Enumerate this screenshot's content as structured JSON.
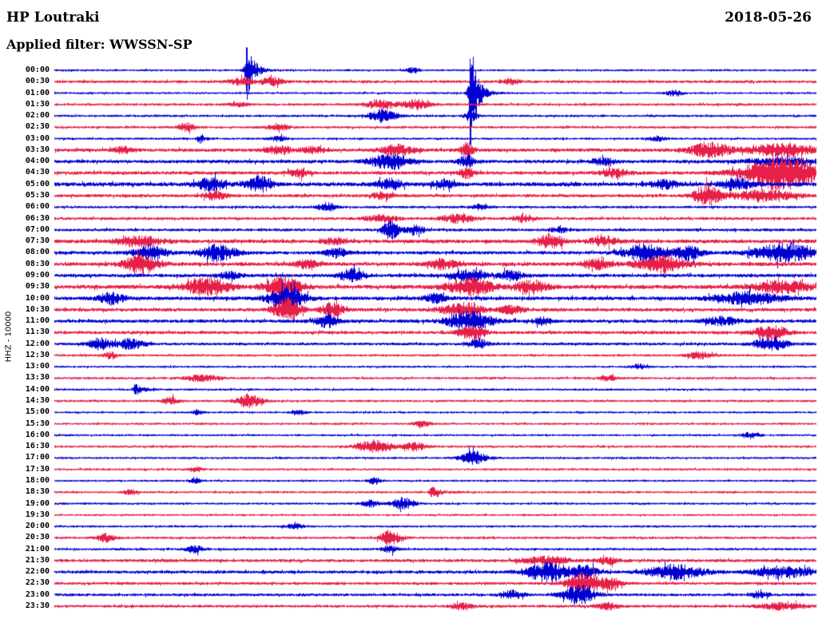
{
  "header": {
    "station": "HP Loutraki",
    "date": "2018-05-26",
    "filter": "Applied filter: WWSSN-SP"
  },
  "axis": {
    "label": "HHZ - 10000"
  },
  "chart_data": {
    "type": "line",
    "subtype": "helicorder-seismogram",
    "station": "HP Loutraki",
    "channel": "HHZ",
    "gain": 10000,
    "date": "2018-05-26",
    "filter": "WWSSN-SP",
    "row_interval_minutes": 30,
    "trace_colors": {
      "even": "#0000d2",
      "odd": "#e62048"
    },
    "rows": [
      {
        "time": "00:00",
        "noise": 1.3,
        "events": [
          [
            0.252,
            0.005,
            40,
            "s"
          ],
          [
            0.47,
            0.006,
            3
          ]
        ]
      },
      {
        "time": "00:30",
        "noise": 1.8,
        "events": [
          [
            0.245,
            0.012,
            4
          ],
          [
            0.285,
            0.01,
            5
          ],
          [
            0.6,
            0.008,
            3
          ]
        ]
      },
      {
        "time": "01:00",
        "noise": 1.3,
        "events": [
          [
            0.546,
            0.005,
            72,
            "s"
          ],
          [
            0.814,
            0.008,
            4
          ]
        ]
      },
      {
        "time": "01:30",
        "noise": 1.6,
        "events": [
          [
            0.43,
            0.015,
            5
          ],
          [
            0.475,
            0.012,
            6
          ],
          [
            0.24,
            0.008,
            3
          ]
        ]
      },
      {
        "time": "02:00",
        "noise": 1.5,
        "events": [
          [
            0.431,
            0.012,
            8
          ],
          [
            0.546,
            0.006,
            6
          ]
        ]
      },
      {
        "time": "02:30",
        "noise": 1.6,
        "events": [
          [
            0.173,
            0.008,
            5
          ],
          [
            0.294,
            0.01,
            3.5
          ]
        ]
      },
      {
        "time": "03:00",
        "noise": 1.4,
        "events": [
          [
            0.189,
            0.004,
            7,
            "s"
          ],
          [
            0.294,
            0.008,
            3
          ],
          [
            0.79,
            0.008,
            3
          ]
        ]
      },
      {
        "time": "03:30",
        "noise": 2.2,
        "events": [
          [
            0.089,
            0.008,
            4
          ],
          [
            0.295,
            0.012,
            5
          ],
          [
            0.34,
            0.01,
            4
          ],
          [
            0.45,
            0.015,
            6
          ],
          [
            0.541,
            0.006,
            9
          ],
          [
            0.86,
            0.018,
            9
          ],
          [
            0.955,
            0.03,
            8
          ]
        ]
      },
      {
        "time": "04:00",
        "noise": 2.2,
        "events": [
          [
            0.44,
            0.018,
            9
          ],
          [
            0.541,
            0.007,
            8
          ],
          [
            0.72,
            0.01,
            4
          ],
          [
            0.955,
            0.03,
            5
          ]
        ]
      },
      {
        "time": "04:30",
        "noise": 2.2,
        "events": [
          [
            0.32,
            0.01,
            5
          ],
          [
            0.541,
            0.007,
            6
          ],
          [
            0.735,
            0.012,
            5
          ],
          [
            0.955,
            0.035,
            20
          ]
        ]
      },
      {
        "time": "05:00",
        "noise": 2.6,
        "events": [
          [
            0.205,
            0.012,
            8
          ],
          [
            0.268,
            0.012,
            9
          ],
          [
            0.44,
            0.012,
            6
          ],
          [
            0.51,
            0.01,
            5
          ],
          [
            0.8,
            0.012,
            5
          ],
          [
            0.895,
            0.014,
            7
          ]
        ]
      },
      {
        "time": "05:30",
        "noise": 2.0,
        "events": [
          [
            0.21,
            0.01,
            5
          ],
          [
            0.43,
            0.01,
            4
          ],
          [
            0.856,
            0.012,
            13
          ],
          [
            0.93,
            0.03,
            6
          ]
        ]
      },
      {
        "time": "06:00",
        "noise": 1.6,
        "events": [
          [
            0.357,
            0.008,
            5
          ],
          [
            0.557,
            0.008,
            3
          ]
        ]
      },
      {
        "time": "06:30",
        "noise": 1.8,
        "events": [
          [
            0.43,
            0.015,
            4
          ],
          [
            0.53,
            0.015,
            5
          ],
          [
            0.615,
            0.01,
            4
          ]
        ]
      },
      {
        "time": "07:00",
        "noise": 1.8,
        "events": [
          [
            0.441,
            0.008,
            11
          ],
          [
            0.473,
            0.008,
            6
          ],
          [
            0.662,
            0.008,
            3
          ]
        ]
      },
      {
        "time": "07:30",
        "noise": 2.4,
        "events": [
          [
            0.11,
            0.02,
            6
          ],
          [
            0.368,
            0.01,
            4
          ],
          [
            0.651,
            0.012,
            8
          ],
          [
            0.72,
            0.012,
            5
          ]
        ]
      },
      {
        "time": "08:00",
        "noise": 2.2,
        "events": [
          [
            0.125,
            0.014,
            9
          ],
          [
            0.215,
            0.016,
            10
          ],
          [
            0.37,
            0.01,
            5
          ],
          [
            0.775,
            0.018,
            11
          ],
          [
            0.832,
            0.012,
            8
          ],
          [
            0.958,
            0.028,
            11
          ]
        ]
      },
      {
        "time": "08:30",
        "noise": 2.4,
        "events": [
          [
            0.115,
            0.016,
            11
          ],
          [
            0.33,
            0.01,
            5
          ],
          [
            0.51,
            0.012,
            6
          ],
          [
            0.71,
            0.012,
            6
          ],
          [
            0.795,
            0.022,
            9
          ]
        ]
      },
      {
        "time": "09:00",
        "noise": 2.2,
        "events": [
          [
            0.23,
            0.01,
            4
          ],
          [
            0.389,
            0.01,
            8
          ],
          [
            0.545,
            0.016,
            7
          ],
          [
            0.6,
            0.01,
            6
          ]
        ]
      },
      {
        "time": "09:30",
        "noise": 2.6,
        "events": [
          [
            0.2,
            0.02,
            10
          ],
          [
            0.3,
            0.016,
            13
          ],
          [
            0.545,
            0.02,
            11
          ],
          [
            0.625,
            0.014,
            8
          ],
          [
            0.955,
            0.025,
            7
          ]
        ]
      },
      {
        "time": "10:00",
        "noise": 2.4,
        "events": [
          [
            0.075,
            0.012,
            7
          ],
          [
            0.305,
            0.016,
            15
          ],
          [
            0.5,
            0.01,
            5
          ],
          [
            0.91,
            0.03,
            7
          ]
        ]
      },
      {
        "time": "10:30",
        "noise": 2.2,
        "events": [
          [
            0.305,
            0.012,
            15
          ],
          [
            0.365,
            0.01,
            9
          ],
          [
            0.535,
            0.018,
            9
          ],
          [
            0.6,
            0.01,
            5
          ]
        ]
      },
      {
        "time": "11:00",
        "noise": 2.2,
        "events": [
          [
            0.357,
            0.01,
            7
          ],
          [
            0.545,
            0.02,
            12
          ],
          [
            0.64,
            0.008,
            4
          ],
          [
            0.875,
            0.015,
            5
          ]
        ]
      },
      {
        "time": "11:30",
        "noise": 2.0,
        "events": [
          [
            0.548,
            0.012,
            9
          ],
          [
            0.94,
            0.015,
            9
          ]
        ]
      },
      {
        "time": "12:00",
        "noise": 1.8,
        "events": [
          [
            0.06,
            0.01,
            7
          ],
          [
            0.1,
            0.012,
            6
          ],
          [
            0.557,
            0.008,
            6
          ],
          [
            0.94,
            0.015,
            8
          ]
        ]
      },
      {
        "time": "12:30",
        "noise": 1.5,
        "events": [
          [
            0.0735,
            0.006,
            4
          ],
          [
            0.845,
            0.012,
            4
          ]
        ]
      },
      {
        "time": "13:00",
        "noise": 1.3,
        "events": [
          [
            0.767,
            0.008,
            3
          ]
        ]
      },
      {
        "time": "13:30",
        "noise": 1.5,
        "events": [
          [
            0.195,
            0.015,
            4
          ],
          [
            0.725,
            0.008,
            3.5
          ]
        ]
      },
      {
        "time": "14:00",
        "noise": 1.4,
        "events": [
          [
            0.105,
            0.005,
            8,
            "s"
          ]
        ]
      },
      {
        "time": "14:30",
        "noise": 1.5,
        "events": [
          [
            0.152,
            0.008,
            4
          ],
          [
            0.255,
            0.012,
            8
          ]
        ]
      },
      {
        "time": "15:00",
        "noise": 1.3,
        "events": [
          [
            0.184,
            0.004,
            5,
            "s"
          ],
          [
            0.32,
            0.006,
            3
          ]
        ]
      },
      {
        "time": "15:30",
        "noise": 1.4,
        "events": [
          [
            0.483,
            0.008,
            3
          ]
        ]
      },
      {
        "time": "16:00",
        "noise": 1.3,
        "events": [
          [
            0.914,
            0.008,
            4
          ]
        ]
      },
      {
        "time": "16:30",
        "noise": 1.5,
        "events": [
          [
            0.42,
            0.016,
            8
          ],
          [
            0.473,
            0.01,
            5
          ]
        ]
      },
      {
        "time": "17:00",
        "noise": 1.4,
        "events": [
          [
            0.55,
            0.012,
            8
          ]
        ]
      },
      {
        "time": "17:30",
        "noise": 1.4,
        "events": [
          [
            0.185,
            0.006,
            3
          ]
        ]
      },
      {
        "time": "18:00",
        "noise": 1.3,
        "events": [
          [
            0.184,
            0.005,
            4
          ],
          [
            0.42,
            0.006,
            4
          ]
        ]
      },
      {
        "time": "18:30",
        "noise": 1.4,
        "events": [
          [
            0.494,
            0.006,
            8,
            "s"
          ],
          [
            0.1,
            0.006,
            3
          ]
        ]
      },
      {
        "time": "19:00",
        "noise": 1.4,
        "events": [
          [
            0.457,
            0.01,
            7
          ],
          [
            0.415,
            0.008,
            4
          ]
        ]
      },
      {
        "time": "19:30",
        "noise": 1.3,
        "events": []
      },
      {
        "time": "20:00",
        "noise": 1.4,
        "events": [
          [
            0.315,
            0.008,
            3
          ]
        ]
      },
      {
        "time": "20:30",
        "noise": 1.6,
        "events": [
          [
            0.068,
            0.008,
            5
          ],
          [
            0.441,
            0.01,
            8
          ]
        ]
      },
      {
        "time": "21:00",
        "noise": 1.5,
        "events": [
          [
            0.184,
            0.008,
            4
          ],
          [
            0.44,
            0.008,
            4
          ]
        ]
      },
      {
        "time": "21:30",
        "noise": 2.0,
        "events": [
          [
            0.645,
            0.02,
            5
          ],
          [
            0.725,
            0.01,
            4
          ]
        ]
      },
      {
        "time": "22:00",
        "noise": 2.0,
        "events": [
          [
            0.645,
            0.018,
            12
          ],
          [
            0.695,
            0.012,
            8
          ],
          [
            0.815,
            0.025,
            9
          ],
          [
            0.955,
            0.025,
            7
          ]
        ]
      },
      {
        "time": "22:30",
        "noise": 1.8,
        "events": [
          [
            0.695,
            0.015,
            13
          ],
          [
            0.73,
            0.01,
            6
          ]
        ]
      },
      {
        "time": "23:00",
        "noise": 1.8,
        "events": [
          [
            0.6,
            0.01,
            5
          ],
          [
            0.688,
            0.014,
            12
          ],
          [
            0.925,
            0.008,
            4
          ]
        ]
      },
      {
        "time": "23:30",
        "noise": 1.8,
        "events": [
          [
            0.535,
            0.01,
            4
          ],
          [
            0.725,
            0.01,
            4
          ],
          [
            0.955,
            0.02,
            4
          ]
        ]
      }
    ]
  }
}
